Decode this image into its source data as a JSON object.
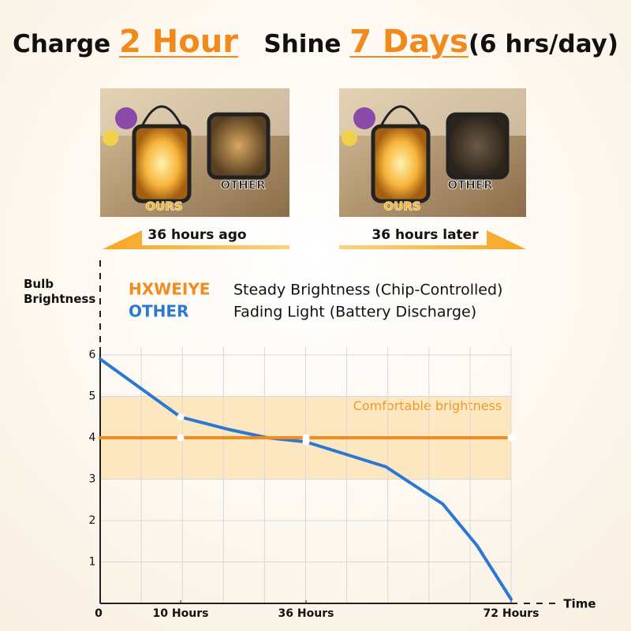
{
  "header": {
    "charge": "Charge",
    "charge_time": "2 Hour",
    "shine": "Shine",
    "shine_time": "7 Days",
    "note": "(6 hrs/day)"
  },
  "photos": [
    {
      "ours": "OURS",
      "other": "OTHER",
      "caption": "36 hours ago"
    },
    {
      "ours": "OURS",
      "other": "OTHER",
      "caption": "36 hours later"
    }
  ],
  "chart_data": {
    "type": "line",
    "y_label": "Bulb Brightness",
    "x_label": "Time",
    "band": {
      "label": "Comfortable brightness",
      "range": [
        3,
        5
      ],
      "color": "#fbe2b4"
    },
    "xlim": [
      0,
      72
    ],
    "ylim": [
      0,
      6
    ],
    "xticks": [
      0,
      {
        "value": 10,
        "label": "10 Hours"
      },
      {
        "value": 36,
        "label": "36 Hours"
      },
      {
        "value": 72,
        "label": "72 Hours"
      }
    ],
    "yticks": [
      1,
      2,
      3,
      4,
      5,
      6
    ],
    "grid": true,
    "series": [
      {
        "name": "HXWEIYE",
        "description": "Steady Brightness (Chip-Controlled)",
        "color": "#f28a1c",
        "x": [
          0,
          10,
          36,
          72
        ],
        "values": [
          4,
          4,
          4,
          4
        ]
      },
      {
        "name": "OTHER",
        "description": "Fading Light (Battery Discharge)",
        "color": "#2a78d2",
        "x": [
          0,
          5,
          10,
          20,
          28,
          36,
          50,
          60,
          66,
          72
        ],
        "values": [
          5.9,
          5.2,
          4.5,
          4.2,
          4.0,
          3.9,
          3.3,
          2.4,
          1.4,
          0.1
        ]
      }
    ]
  }
}
